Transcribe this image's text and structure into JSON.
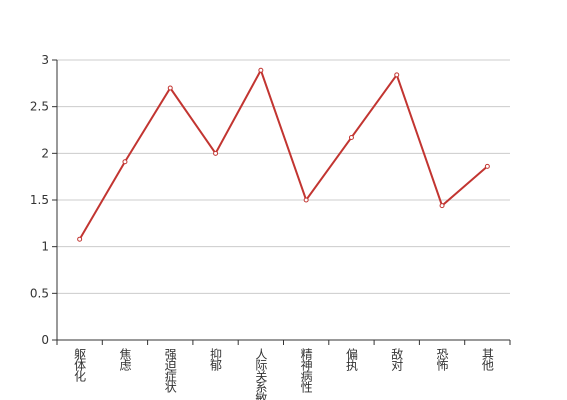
{
  "chart_data": {
    "type": "line",
    "categories": [
      "躯体化",
      "焦虑",
      "强迫症状",
      "抑郁",
      "人际关系敏感",
      "精神病性",
      "偏执",
      "敌对",
      "恐怖",
      "其他"
    ],
    "values": [
      1.08,
      1.91,
      2.7,
      2.0,
      2.89,
      1.5,
      2.17,
      2.84,
      1.44,
      1.86
    ],
    "color": "#c23531",
    "ylim": [
      0,
      3
    ],
    "yticks": [
      0,
      0.5,
      1,
      1.5,
      2,
      2.5,
      3
    ],
    "grid": true
  }
}
